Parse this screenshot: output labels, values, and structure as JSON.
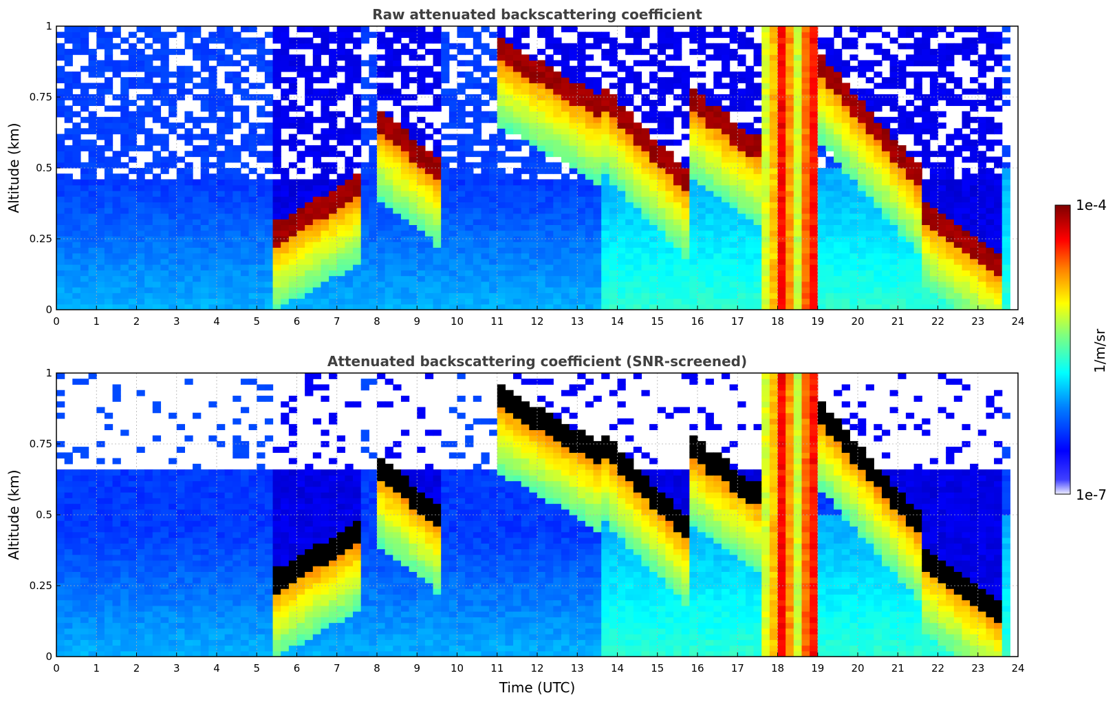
{
  "colors": {
    "jet": [
      "#00007f",
      "#0000ff",
      "#007fff",
      "#00ffff",
      "#7fff7f",
      "#ffff00",
      "#ff7f00",
      "#ff0000",
      "#7f0000"
    ],
    "screened_saturation": "#000000",
    "low_end": "#eeeeff"
  },
  "chart_data": [
    {
      "type": "heatmap",
      "title": "Raw attenuated backscattering coefficient",
      "xlabel": "",
      "ylabel": "Altitude (km)",
      "xlim": [
        0,
        24
      ],
      "ylim": [
        0,
        1
      ],
      "xticks": [
        "0",
        "1",
        "2",
        "3",
        "4",
        "5",
        "6",
        "7",
        "8",
        "9",
        "10",
        "11",
        "12",
        "13",
        "14",
        "15",
        "16",
        "17",
        "18",
        "19",
        "20",
        "21",
        "22",
        "23",
        "24"
      ],
      "yticks": [
        "0",
        "0.25",
        "0.5",
        "0.75",
        "1"
      ],
      "grid": true,
      "cloud_base_layers": [
        {
          "t_start": 5.5,
          "t_end": 7.6,
          "alt_start": 0.25,
          "alt_end": 0.42
        },
        {
          "t_start": 8.0,
          "t_end": 9.5,
          "alt_start": 0.65,
          "alt_end": 0.48
        },
        {
          "t_start": 11.0,
          "t_end": 13.5,
          "alt_start": 0.9,
          "alt_end": 0.7
        },
        {
          "t_start": 13.5,
          "t_end": 15.8,
          "alt_start": 0.75,
          "alt_end": 0.42
        },
        {
          "t_start": 15.8,
          "t_end": 17.5,
          "alt_start": 0.72,
          "alt_end": 0.55
        },
        {
          "t_start": 19.0,
          "t_end": 21.5,
          "alt_start": 0.85,
          "alt_end": 0.45
        },
        {
          "t_start": 21.5,
          "t_end": 23.7,
          "alt_start": 0.35,
          "alt_end": 0.12
        }
      ],
      "precipitation_period": {
        "t_start": 17.6,
        "t_end": 19.0
      }
    },
    {
      "type": "heatmap",
      "title": "Attenuated backscattering coefficient (SNR-screened)",
      "xlabel": "Time (UTC)",
      "ylabel": "Altitude (km)",
      "xlim": [
        0,
        24
      ],
      "ylim": [
        0,
        1
      ],
      "xticks": [
        "0",
        "1",
        "2",
        "3",
        "4",
        "5",
        "6",
        "7",
        "8",
        "9",
        "10",
        "11",
        "12",
        "13",
        "14",
        "15",
        "16",
        "17",
        "18",
        "19",
        "20",
        "21",
        "22",
        "23",
        "24"
      ],
      "yticks": [
        "0",
        "0.25",
        "0.5",
        "0.75",
        "1"
      ],
      "grid": true
    }
  ],
  "colorbar": {
    "label": "1/m/sr",
    "max_label": "1e-4",
    "min_label": "1e-7",
    "range": [
      1e-07,
      0.0001
    ],
    "scale": "log"
  }
}
